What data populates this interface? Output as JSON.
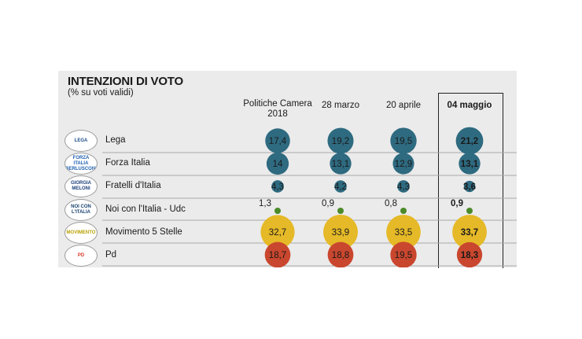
{
  "header": {
    "title": "INTENZIONI DI VOTO",
    "subtitle": "(% su voti validi)"
  },
  "logos": [
    {
      "text": "LEGA",
      "icon": "lega-logo-icon",
      "color": "#1d4e89"
    },
    {
      "text": "FORZA ITALIA BERLUSCONI",
      "icon": "forza-italia-logo-icon",
      "color": "#1f5fb0"
    },
    {
      "text": "GIORGIA MELONI",
      "icon": "fratelli-italia-logo-icon",
      "color": "#1b3f7a"
    },
    {
      "text": "NOI CON L'ITALIA",
      "icon": "noi-con-italia-logo-icon",
      "color": "#17416e"
    },
    {
      "text": "MOVIMENTO",
      "icon": "movimento-5-stelle-logo-icon",
      "color": "#b8a200"
    },
    {
      "text": "PD",
      "icon": "pd-logo-icon",
      "color": "#d83a2a"
    }
  ],
  "chart_data": {
    "type": "bubble",
    "title": "INTENZIONI DI VOTO",
    "subtitle": "(% su voti validi)",
    "columns": [
      "Politiche Camera 2018",
      "28 marzo",
      "20 aprile",
      "04 maggio"
    ],
    "highlighted_column": "04 maggio",
    "series": [
      {
        "name": "Lega",
        "values": [
          17.4,
          19.2,
          19.5,
          21.2
        ],
        "labels": [
          "17,4",
          "19,2",
          "19,5",
          "21,2"
        ],
        "color": "#2e6a80"
      },
      {
        "name": "Forza Italia",
        "values": [
          14,
          13.1,
          12.9,
          13.1
        ],
        "labels": [
          "14",
          "13,1",
          "12,9",
          "13,1"
        ],
        "color": "#2e6a80"
      },
      {
        "name": "Fratelli d'Italia",
        "values": [
          4.3,
          4.2,
          4.3,
          3.6
        ],
        "labels": [
          "4,3",
          "4,2",
          "4,3",
          "3,6"
        ],
        "color": "#2e6a80"
      },
      {
        "name": "Noi con l'Italia - Udc",
        "values": [
          1.3,
          0.9,
          0.8,
          0.9
        ],
        "labels": [
          "1,3",
          "0,9",
          "0,8",
          "0,9"
        ],
        "color": "#4c8a2a"
      },
      {
        "name": "Movimento 5 Stelle",
        "values": [
          32.7,
          33.9,
          33.5,
          33.7
        ],
        "labels": [
          "32,7",
          "33,9",
          "33,5",
          "33,7"
        ],
        "color": "#e5b927"
      },
      {
        "name": "Pd",
        "values": [
          18.7,
          18.8,
          19.5,
          18.3
        ],
        "labels": [
          "18,7",
          "18,8",
          "19,5",
          "18,3"
        ],
        "color": "#c9472e"
      }
    ]
  }
}
